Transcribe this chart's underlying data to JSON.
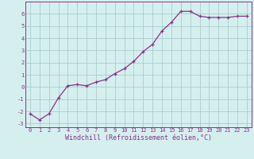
{
  "x": [
    0,
    1,
    2,
    3,
    4,
    5,
    6,
    7,
    8,
    9,
    10,
    11,
    12,
    13,
    14,
    15,
    16,
    17,
    18,
    19,
    20,
    21,
    22,
    23
  ],
  "y": [
    -2.2,
    -2.7,
    -2.2,
    -0.9,
    0.1,
    0.2,
    0.1,
    0.4,
    0.6,
    1.1,
    1.5,
    2.1,
    2.9,
    3.5,
    4.6,
    5.3,
    6.2,
    6.2,
    5.8,
    5.7,
    5.7,
    5.7,
    5.8,
    5.8
  ],
  "xlim": [
    -0.5,
    23.5
  ],
  "ylim": [
    -3.3,
    7.0
  ],
  "xticks": [
    0,
    1,
    2,
    3,
    4,
    5,
    6,
    7,
    8,
    9,
    10,
    11,
    12,
    13,
    14,
    15,
    16,
    17,
    18,
    19,
    20,
    21,
    22,
    23
  ],
  "yticks": [
    -3,
    -2,
    -1,
    0,
    1,
    2,
    3,
    4,
    5,
    6
  ],
  "xlabel": "Windchill (Refroidissement éolien,°C)",
  "line_color": "#883388",
  "marker": "+",
  "marker_size": 3.5,
  "marker_edge_width": 0.9,
  "line_width": 0.9,
  "bg_color": "#d5efef",
  "grid_color": "#aacccc",
  "tick_fontsize": 5.0,
  "xlabel_fontsize": 6.0
}
